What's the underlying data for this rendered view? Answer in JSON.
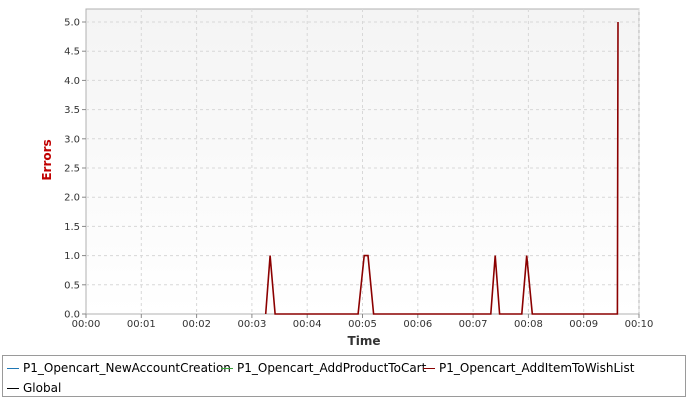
{
  "chart_data": {
    "type": "line",
    "xlabel": "Time",
    "ylabel": "Errors",
    "xlim": [
      0,
      10
    ],
    "ylim": [
      0,
      5.0
    ],
    "x_ticks": [
      "00:00",
      "00:01",
      "00:02",
      "00:03",
      "00:04",
      "00:05",
      "00:06",
      "00:07",
      "00:08",
      "00:09",
      "00:10"
    ],
    "y_ticks": [
      "0.0",
      "0.5",
      "1.0",
      "1.5",
      "2.0",
      "2.5",
      "3.0",
      "3.5",
      "4.0",
      "4.5",
      "5.0"
    ],
    "grid": true,
    "legend_position": "bottom",
    "series": [
      {
        "name": "P1_Opencart_NewAccountCreation",
        "color": "#1f77b4",
        "x": [],
        "y": []
      },
      {
        "name": "P1_Opencart_AddProductToCart",
        "color": "#3aa53a",
        "x": [],
        "y": []
      },
      {
        "name": "P1_Opencart_AddItemToWishList",
        "color": "#8b0000",
        "x": [
          3.25,
          3.33,
          3.42,
          4.92,
          5.03,
          5.1,
          5.2,
          7.32,
          7.4,
          7.48,
          7.88,
          7.97,
          8.07,
          9.61,
          9.62
        ],
        "y": [
          0,
          1,
          0,
          0,
          1,
          1,
          0,
          0,
          1,
          0,
          0,
          1,
          0,
          0,
          5
        ]
      },
      {
        "name": "Global",
        "color": "#000000",
        "x": [],
        "y": []
      }
    ]
  }
}
